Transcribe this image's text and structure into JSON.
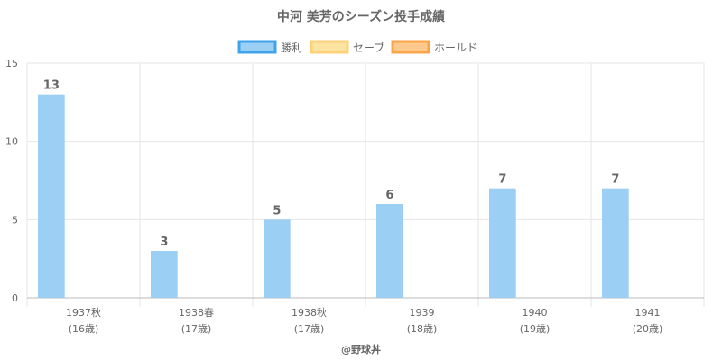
{
  "chart_data": {
    "type": "bar",
    "title": "中河 美芳のシーズン投手成績",
    "categories": [
      {
        "line1": "1937秋",
        "line2": "(16歳)"
      },
      {
        "line1": "1938春",
        "line2": "(17歳)"
      },
      {
        "line1": "1938秋",
        "line2": "(17歳)"
      },
      {
        "line1": "1939",
        "line2": "(18歳)"
      },
      {
        "line1": "1940",
        "line2": "(19歳)"
      },
      {
        "line1": "1941",
        "line2": "(20歳)"
      }
    ],
    "series": [
      {
        "name": "勝利",
        "values": [
          13,
          3,
          5,
          6,
          7,
          7
        ],
        "fill": "#9ccff4",
        "stroke": "#3ea3ea",
        "show_labels": true
      },
      {
        "name": "セーブ",
        "values": [
          0,
          0,
          0,
          0,
          0,
          0
        ],
        "fill": "#fde3a0",
        "stroke": "#fdd17a",
        "show_labels": false
      },
      {
        "name": "ホールド",
        "values": [
          0,
          0,
          0,
          0,
          0,
          0
        ],
        "fill": "#fdc98c",
        "stroke": "#fba54a",
        "show_labels": false
      }
    ],
    "ylim": [
      0,
      15
    ],
    "yticks": [
      0,
      5,
      10,
      15
    ],
    "grid": true,
    "legend_position": "top"
  },
  "footer": "@野球丼"
}
